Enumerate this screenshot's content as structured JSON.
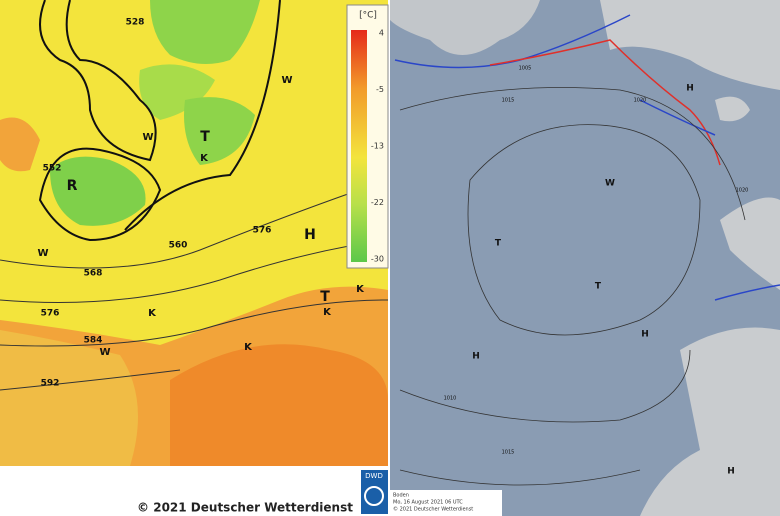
{
  "left_map": {
    "legend": {
      "unit": "[°C]",
      "ticks": [
        "4",
        "-5",
        "-13",
        "-22",
        "-30"
      ]
    },
    "contour_labels": [
      "528",
      "552",
      "560",
      "568",
      "576",
      "576",
      "584",
      "592"
    ],
    "markers": [
      "R",
      "H",
      "T",
      "T",
      "K",
      "K",
      "K",
      "K",
      "K",
      "W",
      "W",
      "W",
      "W"
    ],
    "footer": "© 2021 Deutscher Wetterdienst",
    "logo": "DWD"
  },
  "right_map": {
    "markers": [
      "H",
      "H",
      "H",
      "H",
      "T",
      "T",
      "W"
    ],
    "isobar_labels": [
      "1015",
      "1015",
      "1020",
      "1020",
      "1010",
      "1005"
    ],
    "info": [
      "Boden",
      "Mo, 16 August 2021 06 UTC",
      "© 2021 Deutscher Wetterdienst"
    ]
  }
}
